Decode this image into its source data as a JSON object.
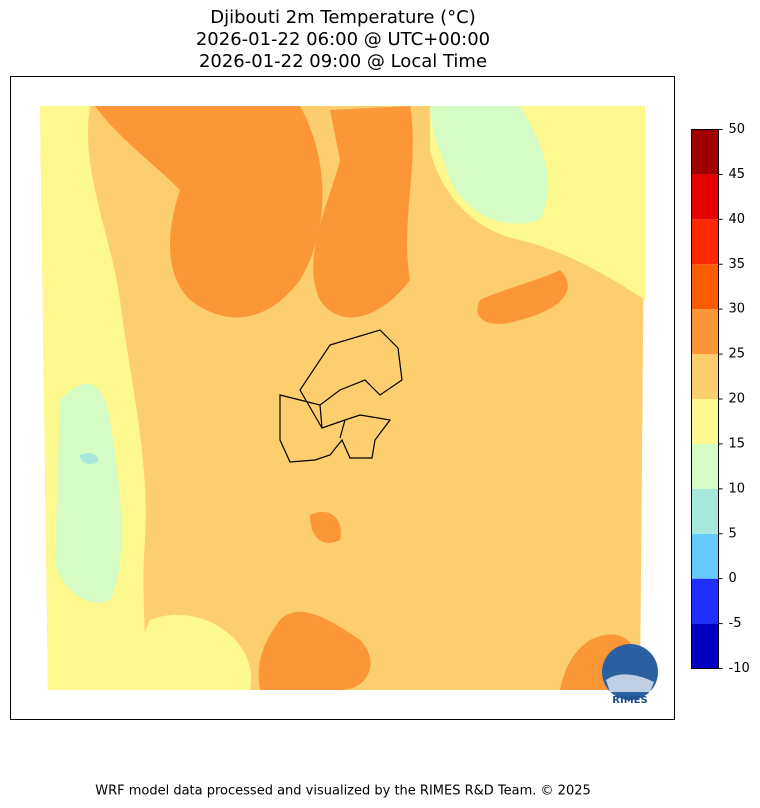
{
  "title_lines": [
    "Djibouti 2m Temperature (°C)",
    "2026-01-22 06:00 @ UTC+00:00",
    "2026-01-22 09:00 @ Local Time"
  ],
  "colorbar": {
    "levels": [
      -10,
      -5,
      0,
      5,
      10,
      15,
      20,
      25,
      30,
      35,
      40,
      45,
      50
    ],
    "colors": [
      "#0000c0",
      "#1f2fff",
      "#66ccff",
      "#a6e8dc",
      "#d4fcc4",
      "#fdf98f",
      "#fdce6d",
      "#fc9738",
      "#fd5b00",
      "#fc2800",
      "#e60000",
      "#a00000"
    ]
  },
  "logo": {
    "label": "RIMES"
  },
  "footer": "WRF model data processed and visualized by the RIMES R&D Team. © 2025"
}
